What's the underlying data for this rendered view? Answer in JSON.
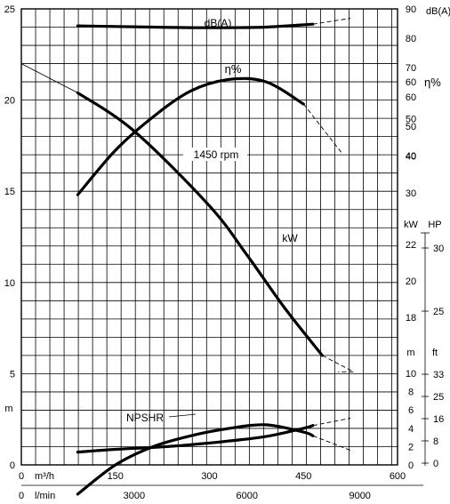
{
  "chart_data": {
    "type": "line",
    "grid": true,
    "axes": {
      "flow_m3h": {
        "unit_label": "m³/h",
        "range": [
          0,
          600
        ],
        "ticks": [
          0,
          150,
          300,
          450,
          600
        ]
      },
      "flow_lmin": {
        "unit_label": "l/min",
        "range": [
          0,
          10000
        ],
        "ticks": [
          0,
          3000,
          6000,
          9000
        ]
      },
      "head_m": {
        "unit_label": "m",
        "range": [
          0,
          25
        ],
        "ticks": [
          0,
          5,
          10,
          15,
          20,
          25
        ]
      },
      "noise_dba": {
        "unit_label": "dB(A)",
        "range": [
          0,
          90
        ],
        "ticks": [
          40,
          50,
          60,
          70,
          80,
          90
        ]
      },
      "efficiency": {
        "unit_label": "η%",
        "ticks": [
          30,
          40,
          50,
          60
        ]
      },
      "power_kw": {
        "unit_label": "kW",
        "ticks": [
          18,
          20,
          22
        ]
      },
      "power_hp": {
        "unit_label": "HP",
        "ticks": [
          25,
          30
        ]
      },
      "npsh_m": {
        "unit_label": "m",
        "range": [
          0,
          10
        ],
        "ticks": [
          0,
          2,
          4,
          6,
          8,
          10
        ]
      },
      "npsh_ft": {
        "unit_label": "ft",
        "ticks": [
          0,
          8,
          16,
          25,
          33
        ]
      }
    },
    "series": [
      {
        "name": "1450 rpm",
        "axis": "head_m",
        "x": [
          90,
          180,
          300,
          360,
          420,
          480
        ],
        "y": [
          20.4,
          18.3,
          14.2,
          11.5,
          8.6,
          6.0
        ],
        "dashed_x": [
          0,
          90
        ],
        "dashed_y": [
          22.0,
          20.4
        ],
        "dashed_tail_x": [
          480,
          530,
          505
        ],
        "dashed_tail_y": [
          6.0,
          5.1,
          5.1
        ]
      },
      {
        "name": "dB(A)",
        "axis": "noise_dba",
        "x": [
          90,
          150,
          210,
          270,
          330,
          390,
          465
        ],
        "y": [
          84.2,
          84.0,
          83.8,
          83.6,
          83.6,
          83.8,
          84.8
        ],
        "dashed_x": [
          465,
          525
        ],
        "dashed_y": [
          84.8,
          86.8
        ]
      },
      {
        "name": "η%",
        "axis": "efficiency",
        "x": [
          90,
          150,
          210,
          270,
          330,
          390,
          450
        ],
        "y": [
          29.5,
          41.5,
          50.5,
          57.5,
          60.6,
          60.0,
          54.0
        ],
        "dashed_x": [
          450,
          510
        ],
        "dashed_y": [
          54.0,
          41.0
        ]
      },
      {
        "name": "kW",
        "axis": "power_kw",
        "x": [
          90,
          150,
          210,
          270,
          330,
          390,
          450,
          465
        ],
        "y": [
          8.3,
          9.9,
          10.9,
          11.5,
          11.9,
          12.1,
          11.7,
          11.5
        ],
        "dashed_x": [
          465,
          525
        ],
        "dashed_y": [
          11.5,
          10.7
        ]
      },
      {
        "name": "NPSHR",
        "axis": "npsh_m",
        "x": [
          90,
          150,
          210,
          270,
          330,
          390,
          450,
          465
        ],
        "y": [
          1.4,
          1.7,
          1.9,
          2.2,
          2.6,
          3.1,
          4.0,
          4.3
        ],
        "dashed_x": [
          465,
          525
        ],
        "dashed_y": [
          4.3,
          5.1
        ]
      }
    ]
  }
}
